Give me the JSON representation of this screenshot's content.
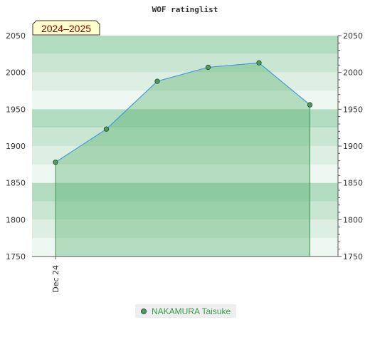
{
  "chart_data": {
    "type": "area",
    "title": "WOF ratinglist",
    "badge": "2024–2025",
    "x_tick_labels": [
      "Dec 24"
    ],
    "series": [
      {
        "name": "NAKAMURA Taisuke",
        "values": [
          1878,
          1923,
          1988,
          2007,
          2013,
          1956
        ]
      }
    ],
    "ylim": [
      1750,
      2050
    ],
    "y_ticks": [
      1750,
      1800,
      1850,
      1900,
      1950,
      2000,
      2050
    ],
    "y_axis_both_sides": true,
    "legend": "bottom-center",
    "colors": {
      "band_dark": "#b2dcc0",
      "band_mid": "#c8e6d2",
      "band_light": "#dcefe2",
      "band_lightest": "#eef7f1",
      "area_fill": "#48a860",
      "line": "#4a9ad8",
      "marker": "#4f9a5e",
      "badge_fill": "#ffffcc",
      "badge_text": "#8b0000"
    }
  }
}
